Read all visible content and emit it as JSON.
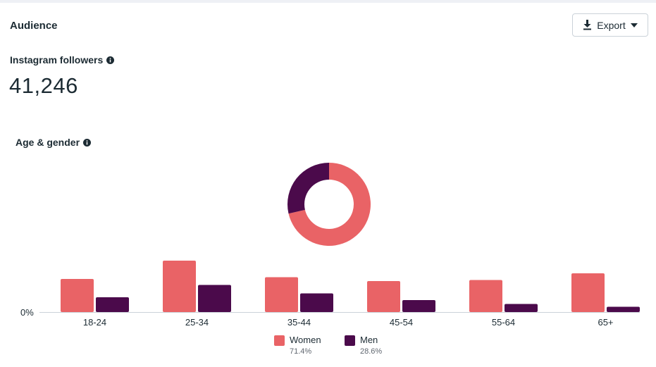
{
  "header": {
    "title": "Audience",
    "export_label": "Export"
  },
  "followers": {
    "label": "Instagram followers",
    "value": "41,246"
  },
  "age_gender": {
    "label": "Age & gender"
  },
  "colors": {
    "women": "#e96366",
    "men": "#4b0a4b",
    "axis": "#cbd2d9"
  },
  "legend": [
    {
      "name": "Women",
      "pct": "71.4%"
    },
    {
      "name": "Men",
      "pct": "28.6%"
    }
  ],
  "chart_data": [
    {
      "type": "pie",
      "variant": "donut",
      "labels": [
        "Women",
        "Men"
      ],
      "values": [
        71.4,
        28.6
      ]
    },
    {
      "type": "bar",
      "categories": [
        "18-24",
        "25-34",
        "35-44",
        "45-54",
        "55-64",
        "65+"
      ],
      "series": [
        {
          "name": "Women",
          "values": [
            9.4,
            14.6,
            9.9,
            8.8,
            9.1,
            11.0
          ]
        },
        {
          "name": "Men",
          "values": [
            4.2,
            7.7,
            5.3,
            3.4,
            2.3,
            1.5
          ]
        }
      ],
      "y_tick_labels": [
        "0%"
      ],
      "ylim": [
        0,
        16
      ]
    }
  ]
}
